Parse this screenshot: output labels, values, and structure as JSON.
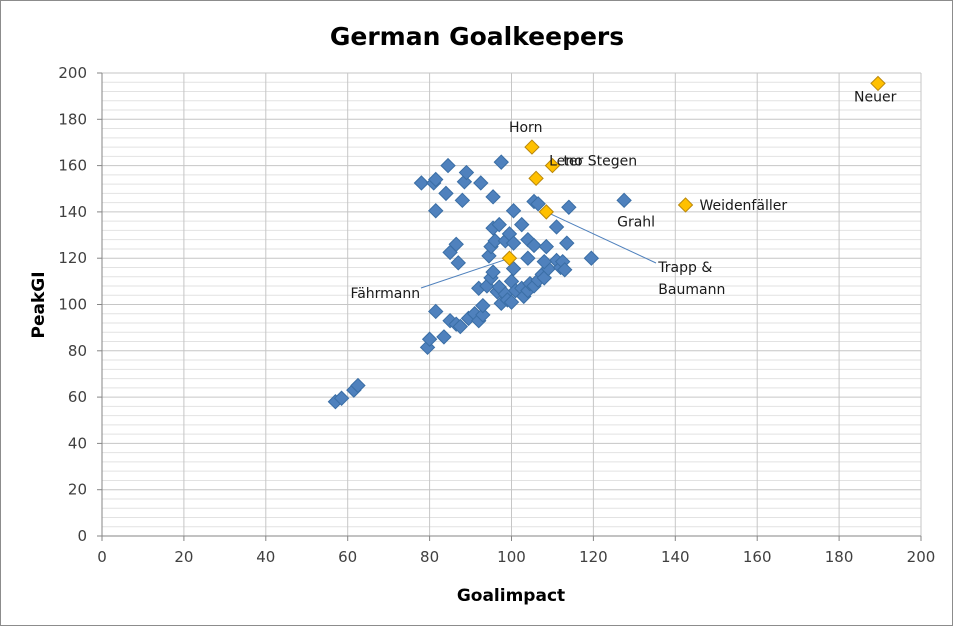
{
  "chart_data": {
    "type": "scatter",
    "title": "German Goalkeepers",
    "xlabel": "Goalimpact",
    "ylabel": "PeakGI",
    "xlim": [
      0,
      200
    ],
    "ylim": [
      0,
      200
    ],
    "x_major_step": 20,
    "y_major_step": 20,
    "y_minor_step": 4,
    "grid": true,
    "legend": "none",
    "colors": {
      "regular": "#4f81bd",
      "highlight": "#ffc000",
      "highlight_stroke": "#b8860b",
      "leader": "#4f81bd"
    },
    "series": [
      {
        "values": [
          [
            57,
            58
          ],
          [
            58.5,
            59.5
          ],
          [
            61.5,
            63
          ],
          [
            62.5,
            65
          ],
          [
            79.5,
            81.5
          ],
          [
            80,
            85
          ],
          [
            81.5,
            97
          ],
          [
            83.5,
            86
          ],
          [
            85,
            93
          ],
          [
            86.5,
            91.5
          ],
          [
            87.5,
            90.5
          ],
          [
            89.5,
            94
          ],
          [
            91,
            96
          ],
          [
            92,
            93
          ],
          [
            93,
            95.5
          ],
          [
            93,
            99.5
          ],
          [
            92,
            107
          ],
          [
            94,
            108
          ],
          [
            95,
            111.5
          ],
          [
            95.5,
            114
          ],
          [
            96.5,
            105.5
          ],
          [
            97.5,
            100.5
          ],
          [
            97,
            107.5
          ],
          [
            98.5,
            104.5
          ],
          [
            99,
            102
          ],
          [
            100,
            110
          ],
          [
            100,
            101
          ],
          [
            101,
            106
          ],
          [
            102.5,
            107
          ],
          [
            103,
            103.5
          ],
          [
            104,
            106
          ],
          [
            104.5,
            109
          ],
          [
            105.5,
            108
          ],
          [
            106.5,
            110.5
          ],
          [
            107.5,
            113
          ],
          [
            108,
            111.5
          ],
          [
            109,
            115.5
          ],
          [
            111,
            119
          ],
          [
            112,
            116
          ],
          [
            112.5,
            118.5
          ],
          [
            113,
            115
          ],
          [
            94.5,
            121
          ],
          [
            95,
            125
          ],
          [
            96,
            127.5
          ],
          [
            95.5,
            133
          ],
          [
            97,
            134.5
          ],
          [
            98.5,
            127.5
          ],
          [
            99.5,
            130.5
          ],
          [
            100.5,
            126.5
          ],
          [
            100.5,
            115.5
          ],
          [
            100.5,
            140.5
          ],
          [
            102.5,
            134.5
          ],
          [
            104,
            128
          ],
          [
            104,
            120
          ],
          [
            105.5,
            125.5
          ],
          [
            105.5,
            144.5
          ],
          [
            106.5,
            143.5
          ],
          [
            108.5,
            125
          ],
          [
            111,
            133.5
          ],
          [
            113.5,
            126.5
          ],
          [
            114,
            142
          ],
          [
            119.5,
            120
          ],
          [
            108,
            118.5
          ],
          [
            127.5,
            145
          ],
          [
            85,
            122.5
          ],
          [
            86.5,
            126
          ],
          [
            87,
            118
          ],
          [
            78,
            152.5
          ],
          [
            81,
            152.5
          ],
          [
            81.5,
            154
          ],
          [
            81.5,
            140.5
          ],
          [
            84,
            148
          ],
          [
            84.5,
            160
          ],
          [
            88,
            145
          ],
          [
            88.5,
            153
          ],
          [
            89,
            157
          ],
          [
            92.5,
            152.5
          ],
          [
            95.5,
            146.5
          ],
          [
            97.5,
            161.5
          ]
        ]
      },
      {
        "values": [
          [
            99.5,
            120
          ],
          [
            105,
            168
          ],
          [
            106,
            154.5
          ],
          [
            108.5,
            140
          ],
          [
            110,
            160
          ],
          [
            142.5,
            143
          ],
          [
            189.5,
            195.5
          ]
        ]
      }
    ],
    "annotations": [
      {
        "text": "Neuer",
        "x": 189.5,
        "y": 195.5
      },
      {
        "text": "Horn",
        "x": 105,
        "y": 168
      },
      {
        "text": "ter Stegen",
        "x": 110,
        "y": 160
      },
      {
        "text": "Leno",
        "x": 106,
        "y": 154.5
      },
      {
        "text": "Weidenfäller",
        "x": 142.5,
        "y": 143
      },
      {
        "text": "Grahl",
        "x": 127.5,
        "y": 145
      },
      {
        "text": "Trapp &",
        "x": 108.5,
        "y": 140
      },
      {
        "text": "Baumann",
        "x": 108.5,
        "y": 140
      },
      {
        "text": "Fährmann",
        "x": 99.5,
        "y": 120
      }
    ]
  }
}
